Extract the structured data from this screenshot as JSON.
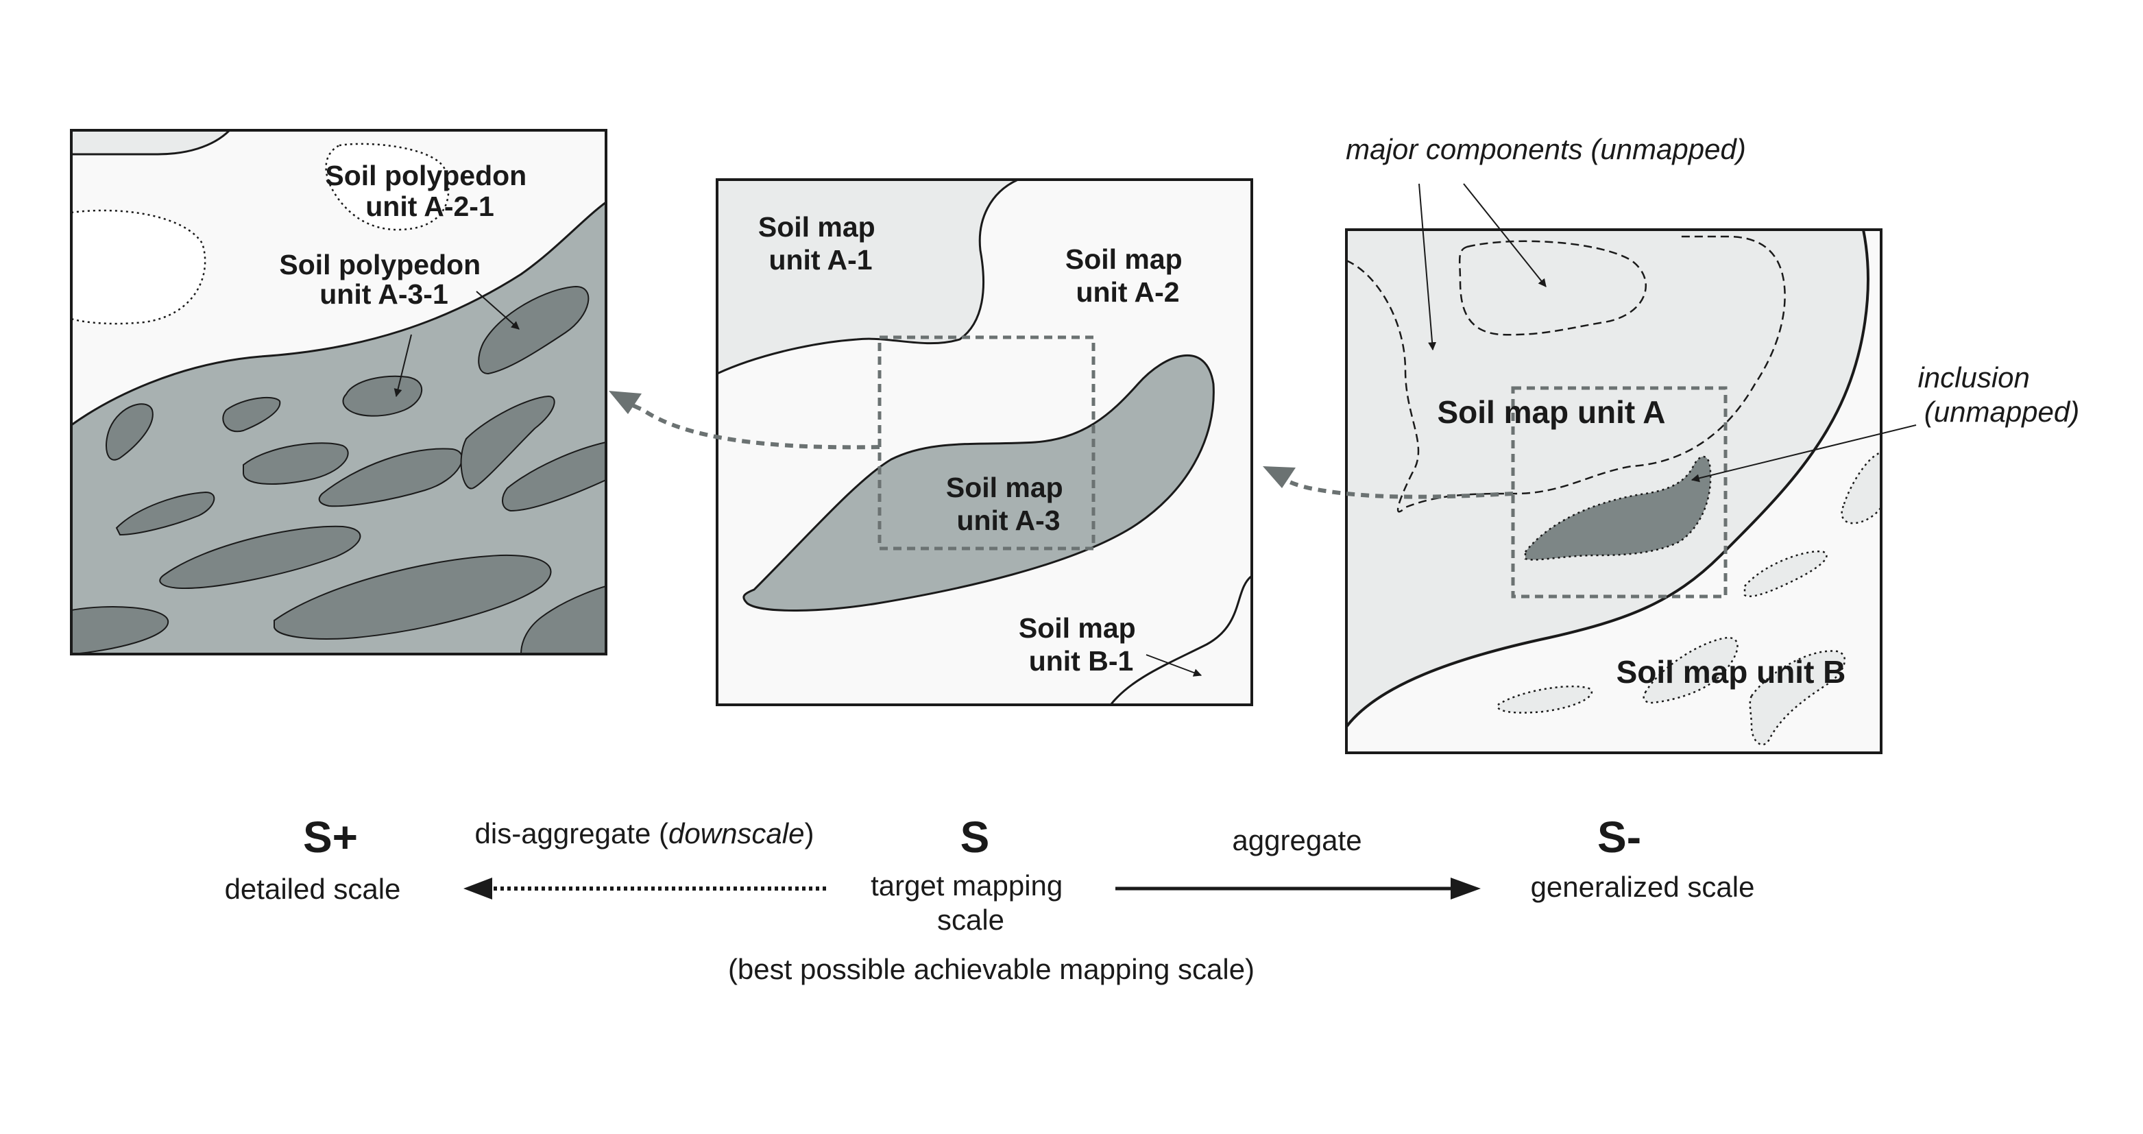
{
  "panels": {
    "detailed": {
      "polypedon_a21": [
        "Soil polypedon",
        "unit A-2-1"
      ],
      "polypedon_a31": [
        "Soil polypedon",
        "unit A-3-1"
      ]
    },
    "target": {
      "unit_a1": [
        "Soil map",
        "unit A-1"
      ],
      "unit_a2": [
        "Soil map",
        "unit A-2"
      ],
      "unit_a3": [
        "Soil map",
        "unit A-3"
      ],
      "unit_b1": [
        "Soil map",
        "unit B-1"
      ]
    },
    "generalized": {
      "major_components": "major components (unmapped)",
      "inclusion": [
        "inclusion",
        "(unmapped)"
      ],
      "unit_a": "Soil map unit A",
      "unit_b": "Soil map unit B"
    }
  },
  "scale_axis": {
    "detailed": {
      "symbol": "S+",
      "label": "detailed scale"
    },
    "target": {
      "symbol": "S",
      "label": [
        "target mapping",
        "scale"
      ],
      "note": "(best possible achievable mapping scale)"
    },
    "generalized": {
      "symbol": "S-",
      "label": "generalized scale"
    },
    "disaggregate": {
      "prefix": "dis-aggregate (",
      "italic": "downscale",
      "suffix": ")"
    },
    "aggregate": "aggregate"
  },
  "colors": {
    "light_fill": "#e9ebeb",
    "mid_fill": "#a8b1b1",
    "dark_fill": "#7d8686",
    "outline": "#1a1a1a",
    "dashed_arrow": "#6b7272"
  }
}
